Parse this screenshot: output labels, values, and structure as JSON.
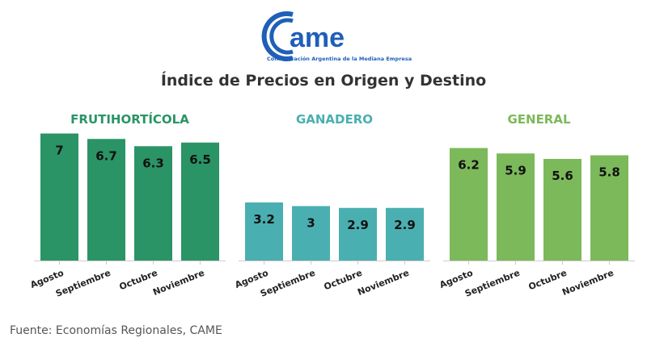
{
  "logo": {
    "text": "CAME",
    "subtitle": "Confederación Argentina de la Mediana Empresa"
  },
  "title": "Índice de Precios en Origen y Destino",
  "source": "Fuente: Economías Regionales, CAME",
  "chart_data": [
    {
      "type": "bar",
      "title": "FRUTIHORTÍCOLA",
      "color": "#2a9466",
      "categories": [
        "Agosto",
        "Septiembre",
        "Octubre",
        "Noviembre"
      ],
      "values": [
        7,
        6.7,
        6.3,
        6.5
      ],
      "ylim": [
        0,
        7.2
      ]
    },
    {
      "type": "bar",
      "title": "GANADERO",
      "color": "#4aafb0",
      "categories": [
        "Agosto",
        "Septiembre",
        "Octubre",
        "Noviembre"
      ],
      "values": [
        3.2,
        3,
        2.9,
        2.9
      ],
      "ylim": [
        0,
        7.2
      ]
    },
    {
      "type": "bar",
      "title": "GENERAL",
      "color": "#7cb95a",
      "categories": [
        "Agosto",
        "Septiembre",
        "Octubre",
        "Noviembre"
      ],
      "values": [
        6.2,
        5.9,
        5.6,
        5.8
      ],
      "ylim": [
        0,
        7.2
      ]
    }
  ]
}
